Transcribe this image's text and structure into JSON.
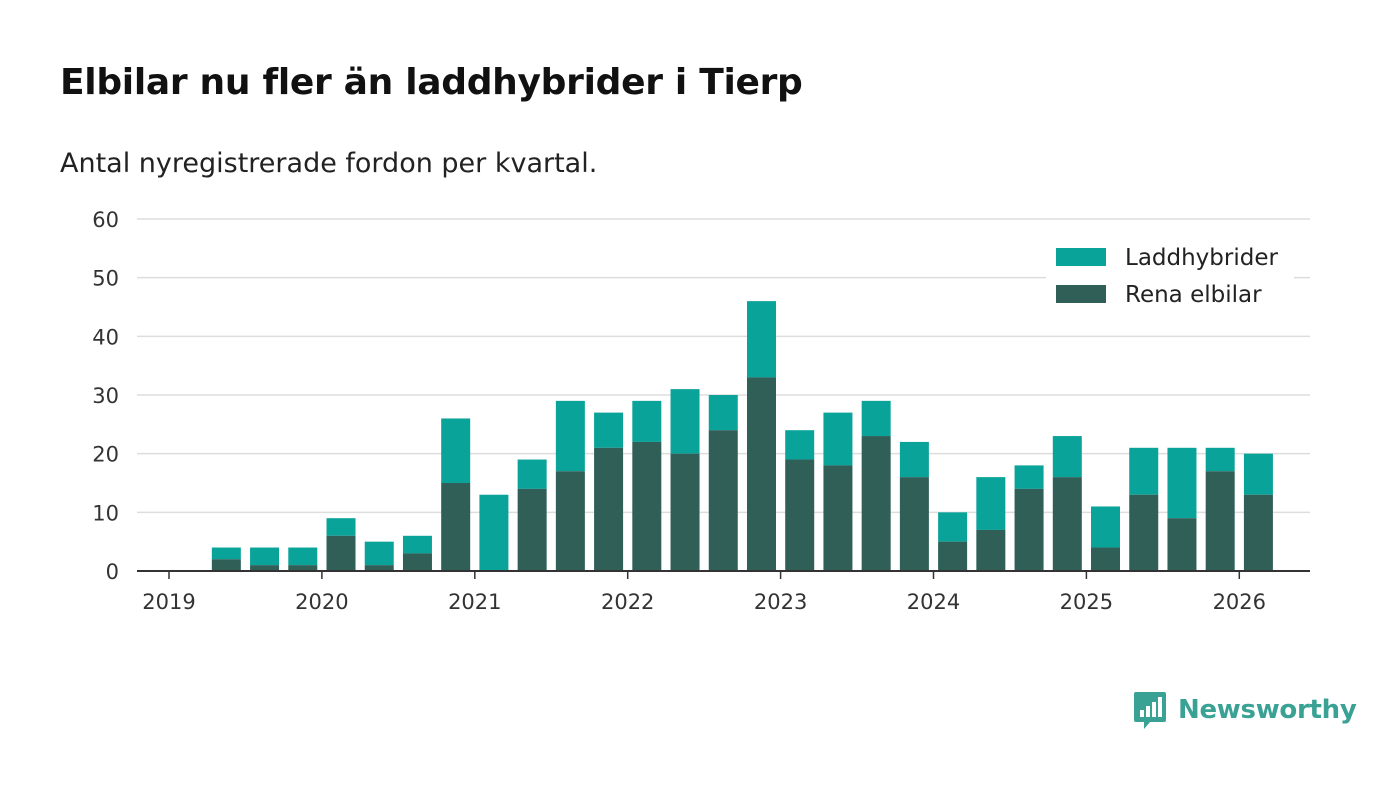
{
  "title": "Elbilar nu fler än laddhybrider i Tierp",
  "subtitle": "Antal nyregistrerade fordon per kvartal.",
  "brand": "Newsworthy",
  "colors": {
    "phev": "#0aa39a",
    "ev": "#2f5f57",
    "grid": "#dddddd",
    "axis": "#333333"
  },
  "chart_data": {
    "type": "bar",
    "stacked": true,
    "ylim": [
      0,
      60
    ],
    "yticks": [
      0,
      10,
      20,
      30,
      40,
      50,
      60
    ],
    "xticks": [
      "2019",
      "2020",
      "2021",
      "2022",
      "2023",
      "2024",
      "2025",
      "2026"
    ],
    "categories": [
      "2019 Q2",
      "2019 Q3",
      "2019 Q4",
      "2020 Q1",
      "2020 Q2",
      "2020 Q3",
      "2020 Q4",
      "2021 Q1",
      "2021 Q2",
      "2021 Q3",
      "2021 Q4",
      "2022 Q1",
      "2022 Q2",
      "2022 Q3",
      "2022 Q4",
      "2023 Q1",
      "2023 Q2",
      "2023 Q3",
      "2023 Q4",
      "2024 Q1",
      "2024 Q2",
      "2024 Q3",
      "2024 Q4",
      "2025 Q1",
      "2025 Q2",
      "2025 Q3",
      "2025 Q4",
      "2026 Q1"
    ],
    "series": [
      {
        "name": "Rena elbilar",
        "values": [
          2,
          1,
          1,
          6,
          1,
          3,
          15,
          0,
          14,
          17,
          21,
          22,
          20,
          24,
          33,
          19,
          18,
          23,
          16,
          5,
          7,
          14,
          16,
          4,
          13,
          9,
          17,
          13
        ]
      },
      {
        "name": "Laddhybrider",
        "values": [
          2,
          3,
          3,
          3,
          4,
          3,
          11,
          13,
          5,
          12,
          6,
          7,
          11,
          6,
          13,
          5,
          9,
          6,
          6,
          5,
          9,
          4,
          7,
          7,
          8,
          12,
          4,
          7
        ]
      }
    ],
    "legend": [
      "Laddhybrider",
      "Rena elbilar"
    ],
    "legend_position": "top-right",
    "grid": true
  }
}
